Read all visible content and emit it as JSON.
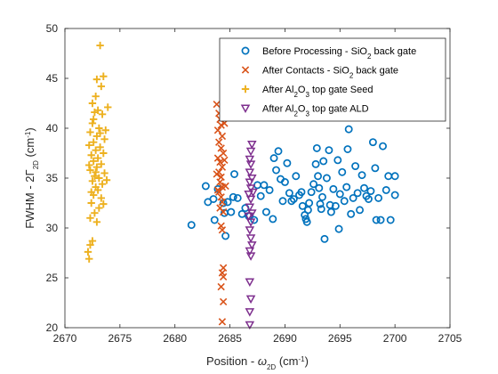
{
  "chart_data": {
    "type": "scatter",
    "xlim": [
      2670,
      2705
    ],
    "ylim": [
      20,
      50
    ],
    "xticks": [
      2670,
      2675,
      2680,
      2685,
      2690,
      2695,
      2700,
      2705
    ],
    "yticks": [
      20,
      25,
      30,
      35,
      40,
      45,
      50
    ],
    "xlabel": {
      "prefix": "Position - ",
      "symbol": "ω",
      "sub": "2D",
      "unit": " (cm",
      "unit_sup": "-1",
      "close": ")"
    },
    "ylabel": {
      "prefix": "FWHM - 2",
      "symbol": "Γ",
      "sub": "2D",
      "unit": " (cm",
      "unit_sup": "-1",
      "close": ")"
    },
    "grid": false,
    "box": true,
    "legend_position": "top-right",
    "series": [
      {
        "name": "Before Processing - SiO2 back gate",
        "legend_parts": [
          "Before Processing - SiO",
          "2",
          " back gate"
        ],
        "marker": "circle",
        "color": "#0072BD",
        "points": [
          [
            2681.5,
            30.3
          ],
          [
            2682.8,
            34.2
          ],
          [
            2683,
            32.6
          ],
          [
            2683.5,
            32.9
          ],
          [
            2683.6,
            30.8
          ],
          [
            2683.9,
            33.9
          ],
          [
            2684.4,
            32.5
          ],
          [
            2684.5,
            31.5
          ],
          [
            2684.6,
            29.2
          ],
          [
            2684.8,
            32.6
          ],
          [
            2685.1,
            31.6
          ],
          [
            2685.3,
            33.1
          ],
          [
            2685.4,
            35.4
          ],
          [
            2685.7,
            33.0
          ],
          [
            2686.1,
            31.4
          ],
          [
            2686.4,
            32.0
          ],
          [
            2686.8,
            31.2
          ],
          [
            2687.2,
            30.8
          ],
          [
            2687.5,
            34.3
          ],
          [
            2687.8,
            33.2
          ],
          [
            2688.1,
            34.3
          ],
          [
            2688.3,
            31.6
          ],
          [
            2688.6,
            33.8
          ],
          [
            2688.9,
            30.9
          ],
          [
            2689.0,
            37.0
          ],
          [
            2689.2,
            35.8
          ],
          [
            2689.4,
            37.7
          ],
          [
            2689.6,
            34.9
          ],
          [
            2689.8,
            32.7
          ],
          [
            2690.0,
            34.6
          ],
          [
            2690.2,
            36.5
          ],
          [
            2690.4,
            33.5
          ],
          [
            2690.6,
            32.7
          ],
          [
            2690.8,
            32.9
          ],
          [
            2691.0,
            35.2
          ],
          [
            2691.3,
            33.3
          ],
          [
            2691.5,
            33.6
          ],
          [
            2691.6,
            32.2
          ],
          [
            2691.8,
            31.3
          ],
          [
            2691.9,
            30.9
          ],
          [
            2692.0,
            30.6
          ],
          [
            2692.1,
            31.8
          ],
          [
            2692.2,
            32.5
          ],
          [
            2692.4,
            33.6
          ],
          [
            2692.6,
            34.4
          ],
          [
            2692.8,
            36.4
          ],
          [
            2692.9,
            38.0
          ],
          [
            2693.0,
            35.2
          ],
          [
            2693.1,
            34.0
          ],
          [
            2693.2,
            32.4
          ],
          [
            2693.3,
            31.9
          ],
          [
            2693.4,
            33.1
          ],
          [
            2693.5,
            36.7
          ],
          [
            2693.6,
            28.9
          ],
          [
            2693.8,
            35.0
          ],
          [
            2694.0,
            37.8
          ],
          [
            2694.1,
            32.3
          ],
          [
            2694.2,
            31.6
          ],
          [
            2694.4,
            33.9
          ],
          [
            2694.6,
            32.2
          ],
          [
            2694.8,
            36.8
          ],
          [
            2695.0,
            33.4
          ],
          [
            2695.2,
            35.6
          ],
          [
            2695.4,
            32.7
          ],
          [
            2695.6,
            34.1
          ],
          [
            2695.7,
            37.9
          ],
          [
            2695.8,
            39.9
          ],
          [
            2696.0,
            31.4
          ],
          [
            2696.2,
            33.0
          ],
          [
            2696.4,
            36.2
          ],
          [
            2696.6,
            33.5
          ],
          [
            2696.8,
            31.8
          ],
          [
            2697.0,
            35.3
          ],
          [
            2697.2,
            34.0
          ],
          [
            2697.4,
            33.2
          ],
          [
            2697.6,
            32.9
          ],
          [
            2697.8,
            33.7
          ],
          [
            2698.0,
            38.6
          ],
          [
            2698.3,
            30.8
          ],
          [
            2698.5,
            33.0
          ],
          [
            2698.7,
            30.8
          ],
          [
            2698.9,
            38.2
          ],
          [
            2699.2,
            33.8
          ],
          [
            2699.4,
            35.2
          ],
          [
            2699.6,
            30.8
          ],
          [
            2700.0,
            35.2
          ],
          [
            2700.0,
            33.3
          ],
          [
            2698.2,
            36.0
          ],
          [
            2686.7,
            31.2
          ],
          [
            2694.9,
            29.9
          ]
        ]
      },
      {
        "name": "After Contacts - SiO2 back gate",
        "legend_parts": [
          "After Contacts - SiO",
          "2",
          " back gate"
        ],
        "marker": "cross",
        "color": "#D95319",
        "points": [
          [
            2683.8,
            42.4
          ],
          [
            2684.0,
            41.5
          ],
          [
            2684.1,
            40.9
          ],
          [
            2684.2,
            40.3
          ],
          [
            2683.9,
            39.8
          ],
          [
            2684.3,
            39.2
          ],
          [
            2684.0,
            38.6
          ],
          [
            2684.2,
            38.0
          ],
          [
            2684.4,
            37.5
          ],
          [
            2683.9,
            37.0
          ],
          [
            2684.1,
            36.6
          ],
          [
            2684.3,
            36.1
          ],
          [
            2684.0,
            35.6
          ],
          [
            2684.2,
            35.1
          ],
          [
            2684.1,
            34.6
          ],
          [
            2684.3,
            34.1
          ],
          [
            2684.0,
            33.6
          ],
          [
            2684.2,
            33.1
          ],
          [
            2684.3,
            32.6
          ],
          [
            2684.1,
            32.0
          ],
          [
            2684.4,
            31.6
          ],
          [
            2684.2,
            30.2
          ],
          [
            2684.3,
            29.8
          ],
          [
            2684.4,
            26.0
          ],
          [
            2684.3,
            25.5
          ],
          [
            2684.4,
            25.1
          ],
          [
            2684.2,
            24.1
          ],
          [
            2684.4,
            22.6
          ],
          [
            2684.3,
            20.6
          ],
          [
            2684.5,
            40.5
          ],
          [
            2684.5,
            36.8
          ],
          [
            2683.8,
            35.4
          ],
          [
            2684.6,
            34.2
          ],
          [
            2683.9,
            33.8
          ]
        ]
      },
      {
        "name": "After Al2O3 top gate Seed",
        "legend_parts": [
          "After Al",
          "2",
          "O",
          "3",
          " top gate Seed"
        ],
        "marker": "plus",
        "color": "#EDB120",
        "points": [
          [
            2673.2,
            48.3
          ],
          [
            2673.5,
            45.2
          ],
          [
            2672.9,
            44.9
          ],
          [
            2673.3,
            44.2
          ],
          [
            2672.8,
            43.2
          ],
          [
            2673.9,
            42.1
          ],
          [
            2673.0,
            41.8
          ],
          [
            2672.7,
            41.6
          ],
          [
            2673.4,
            41.4
          ],
          [
            2672.5,
            40.5
          ],
          [
            2673.1,
            40.0
          ],
          [
            2672.3,
            39.6
          ],
          [
            2672.9,
            39.2
          ],
          [
            2673.6,
            38.9
          ],
          [
            2672.6,
            38.6
          ],
          [
            2672.2,
            38.3
          ],
          [
            2673.2,
            38.1
          ],
          [
            2672.8,
            37.8
          ],
          [
            2673.5,
            37.5
          ],
          [
            2672.4,
            37.3
          ],
          [
            2673.0,
            37.0
          ],
          [
            2672.6,
            36.7
          ],
          [
            2673.3,
            36.4
          ],
          [
            2672.9,
            36.1
          ],
          [
            2672.3,
            35.8
          ],
          [
            2673.6,
            35.5
          ],
          [
            2672.7,
            35.2
          ],
          [
            2673.1,
            35.0
          ],
          [
            2672.5,
            34.7
          ],
          [
            2673.4,
            34.4
          ],
          [
            2672.8,
            34.1
          ],
          [
            2673.0,
            33.8
          ],
          [
            2672.6,
            33.3
          ],
          [
            2673.3,
            33.0
          ],
          [
            2672.4,
            32.5
          ],
          [
            2673.1,
            32.0
          ],
          [
            2672.7,
            31.5
          ],
          [
            2672.3,
            31.0
          ],
          [
            2672.9,
            30.6
          ],
          [
            2672.5,
            28.7
          ],
          [
            2672.3,
            28.3
          ],
          [
            2672.1,
            27.6
          ],
          [
            2672.2,
            26.9
          ],
          [
            2672.5,
            42.5
          ],
          [
            2673.7,
            39.8
          ],
          [
            2672.2,
            36.3
          ],
          [
            2673.8,
            34.8
          ],
          [
            2672.4,
            33.6
          ],
          [
            2673.5,
            32.4
          ],
          [
            2672.8,
            35.6
          ],
          [
            2673.2,
            39.5
          ],
          [
            2672.6,
            40.9
          ]
        ]
      },
      {
        "name": "After Al2O3 top gate ALD",
        "legend_parts": [
          "After Al",
          "2",
          "O",
          "3",
          " top gate ALD"
        ],
        "marker": "triangle-down",
        "color": "#7E2F8E",
        "points": [
          [
            2687.0,
            38.4
          ],
          [
            2686.9,
            37.7
          ],
          [
            2686.8,
            36.9
          ],
          [
            2686.9,
            36.4
          ],
          [
            2686.8,
            35.6
          ],
          [
            2687.0,
            35.0
          ],
          [
            2686.8,
            34.6
          ],
          [
            2686.9,
            34.0
          ],
          [
            2686.7,
            33.4
          ],
          [
            2686.9,
            32.9
          ],
          [
            2686.8,
            32.1
          ],
          [
            2687.0,
            31.5
          ],
          [
            2686.9,
            30.6
          ],
          [
            2686.8,
            29.8
          ],
          [
            2686.9,
            29.0
          ],
          [
            2687.0,
            28.3
          ],
          [
            2686.8,
            27.7
          ],
          [
            2686.9,
            27.2
          ],
          [
            2686.8,
            24.6
          ],
          [
            2686.9,
            22.9
          ],
          [
            2686.8,
            21.6
          ],
          [
            2686.8,
            20.3
          ],
          [
            2687.1,
            33.6
          ],
          [
            2686.7,
            31.2
          ]
        ]
      }
    ]
  }
}
